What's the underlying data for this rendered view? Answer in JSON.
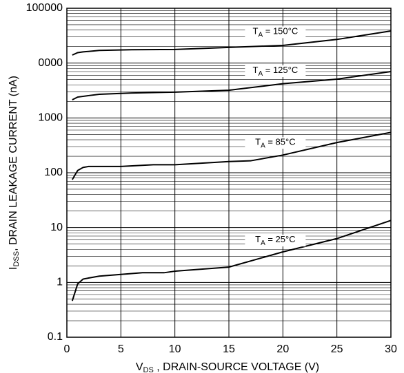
{
  "chart_data": {
    "type": "line",
    "ylabel": {
      "main": "I",
      "sub": "DSS",
      "rest": ", DRAIN LEAKAGE CURRENT (nA)"
    },
    "xlabel": {
      "main": "V",
      "sub": "DS",
      "rest": " , DRAIN-SOURCE VOLTAGE (V)"
    },
    "xlim": [
      0,
      30
    ],
    "xticks": [
      0,
      5,
      10,
      15,
      20,
      25,
      30
    ],
    "ylim": [
      0.1,
      100000
    ],
    "ylog": true,
    "yticks": [
      0.1,
      1,
      10,
      100,
      1000,
      {
        "value": 10000,
        "label": "0000"
      },
      100000
    ],
    "grid": true,
    "color": "#000000",
    "series": [
      {
        "label_main": "T",
        "label_sub": "A",
        "label_rest": " = 150°C",
        "x": [
          0.5,
          1,
          1.5,
          3,
          6,
          10,
          15,
          20,
          25,
          30
        ],
        "values": [
          14000,
          15500,
          16000,
          17000,
          17500,
          17700,
          19300,
          21000,
          27000,
          38500
        ]
      },
      {
        "label_main": "T",
        "label_sub": "A",
        "label_rest": " = 125°C",
        "x": [
          0.5,
          1,
          2,
          3,
          6,
          10,
          15,
          20,
          25,
          30
        ],
        "values": [
          2140,
          2400,
          2550,
          2700,
          2850,
          2950,
          3200,
          4200,
          5100,
          7000
        ]
      },
      {
        "label_main": "T",
        "label_sub": "A",
        "label_rest": " = 85°C",
        "x": [
          0.5,
          1,
          1.5,
          2,
          5,
          8,
          10,
          15,
          17,
          20,
          25,
          30
        ],
        "values": [
          75,
          110,
          125,
          130,
          130,
          140,
          140,
          160,
          165,
          210,
          355,
          545
        ]
      },
      {
        "label_main": "T",
        "label_sub": "A",
        "label_rest": " = 25°C",
        "x": [
          0.5,
          1,
          1.5,
          2,
          3,
          5,
          7,
          9,
          10,
          15,
          20,
          25,
          30
        ],
        "values": [
          0.46,
          0.94,
          1.15,
          1.2,
          1.3,
          1.4,
          1.5,
          1.5,
          1.6,
          1.9,
          3.6,
          6.3,
          13.5
        ]
      }
    ]
  }
}
